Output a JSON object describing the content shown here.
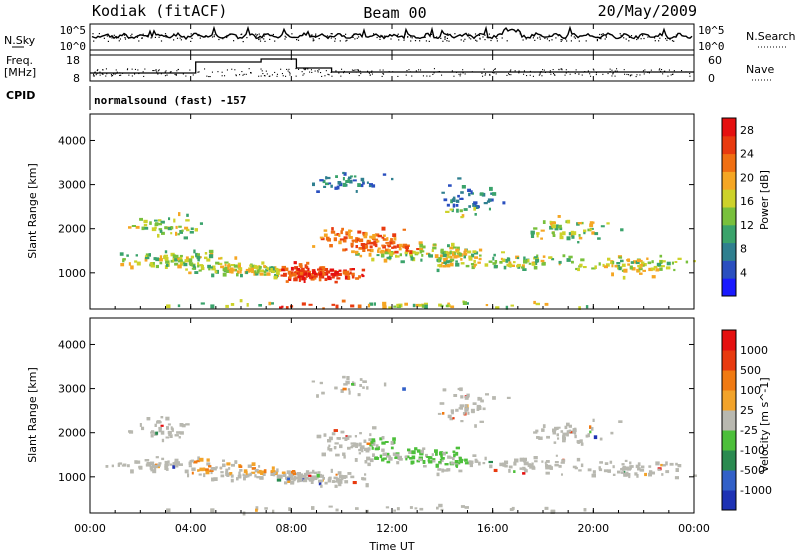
{
  "header": {
    "station": "Kodiak (fitACF)",
    "beam": "Beam 00",
    "date": "20/May/2009"
  },
  "top_panels": {
    "nsky_label": "N.Sky",
    "nsky_tick_top": "10^5",
    "nsky_tick_bottom": "10^0",
    "nsearch_label": "N.Search",
    "nsearch_tick_top": "10^5",
    "nsearch_tick_bottom": "10^0",
    "freq_label_1": "Freq.",
    "freq_label_2": "[MHz]",
    "freq_ticks": [
      "18",
      "8"
    ],
    "nave_label": "Nave",
    "nave_ticks": [
      "60",
      "0"
    ],
    "cpid_label": "CPID",
    "cpid_value": "normalsound (fast) -157"
  },
  "chart_data": [
    {
      "type": "heatmap",
      "name": "power",
      "ylabel": "Slant Range [km]",
      "yticks": [
        1000,
        2000,
        3000,
        4000
      ],
      "ylim": [
        180,
        4600
      ],
      "xlim": [
        0,
        24
      ],
      "colorbar": {
        "label": "Power [dB]",
        "ticks": [
          4,
          8,
          12,
          16,
          20,
          24,
          28
        ],
        "range": [
          0,
          30
        ],
        "colors": [
          "#1a1aff",
          "#2a4fbf",
          "#2f7f8f",
          "#3aa36b",
          "#78c03c",
          "#cdd22a",
          "#f5a623",
          "#f06f12",
          "#e83a0f",
          "#e51010"
        ]
      }
    },
    {
      "type": "heatmap",
      "name": "velocity",
      "ylabel": "Slant Range [km]",
      "yticks": [
        1000,
        2000,
        3000,
        4000
      ],
      "ylim": [
        180,
        4600
      ],
      "xlim": [
        0,
        24
      ],
      "colorbar": {
        "label": "Velocity [m s^-1]",
        "ticks": [
          "1000",
          "500",
          "100",
          "25",
          "-25",
          "-100",
          "-500",
          "-1000"
        ],
        "colors": [
          "#1e32b4",
          "#3260c8",
          "#2a8a50",
          "#4cbf3a",
          "#b8b8b0",
          "#f2a32a",
          "#f07a12",
          "#e83a0f",
          "#e51010"
        ]
      }
    }
  ],
  "xaxis": {
    "ticks": [
      "00:00",
      "04:00",
      "08:00",
      "12:00",
      "16:00",
      "20:00",
      "00:00"
    ],
    "label": "Time UT"
  }
}
